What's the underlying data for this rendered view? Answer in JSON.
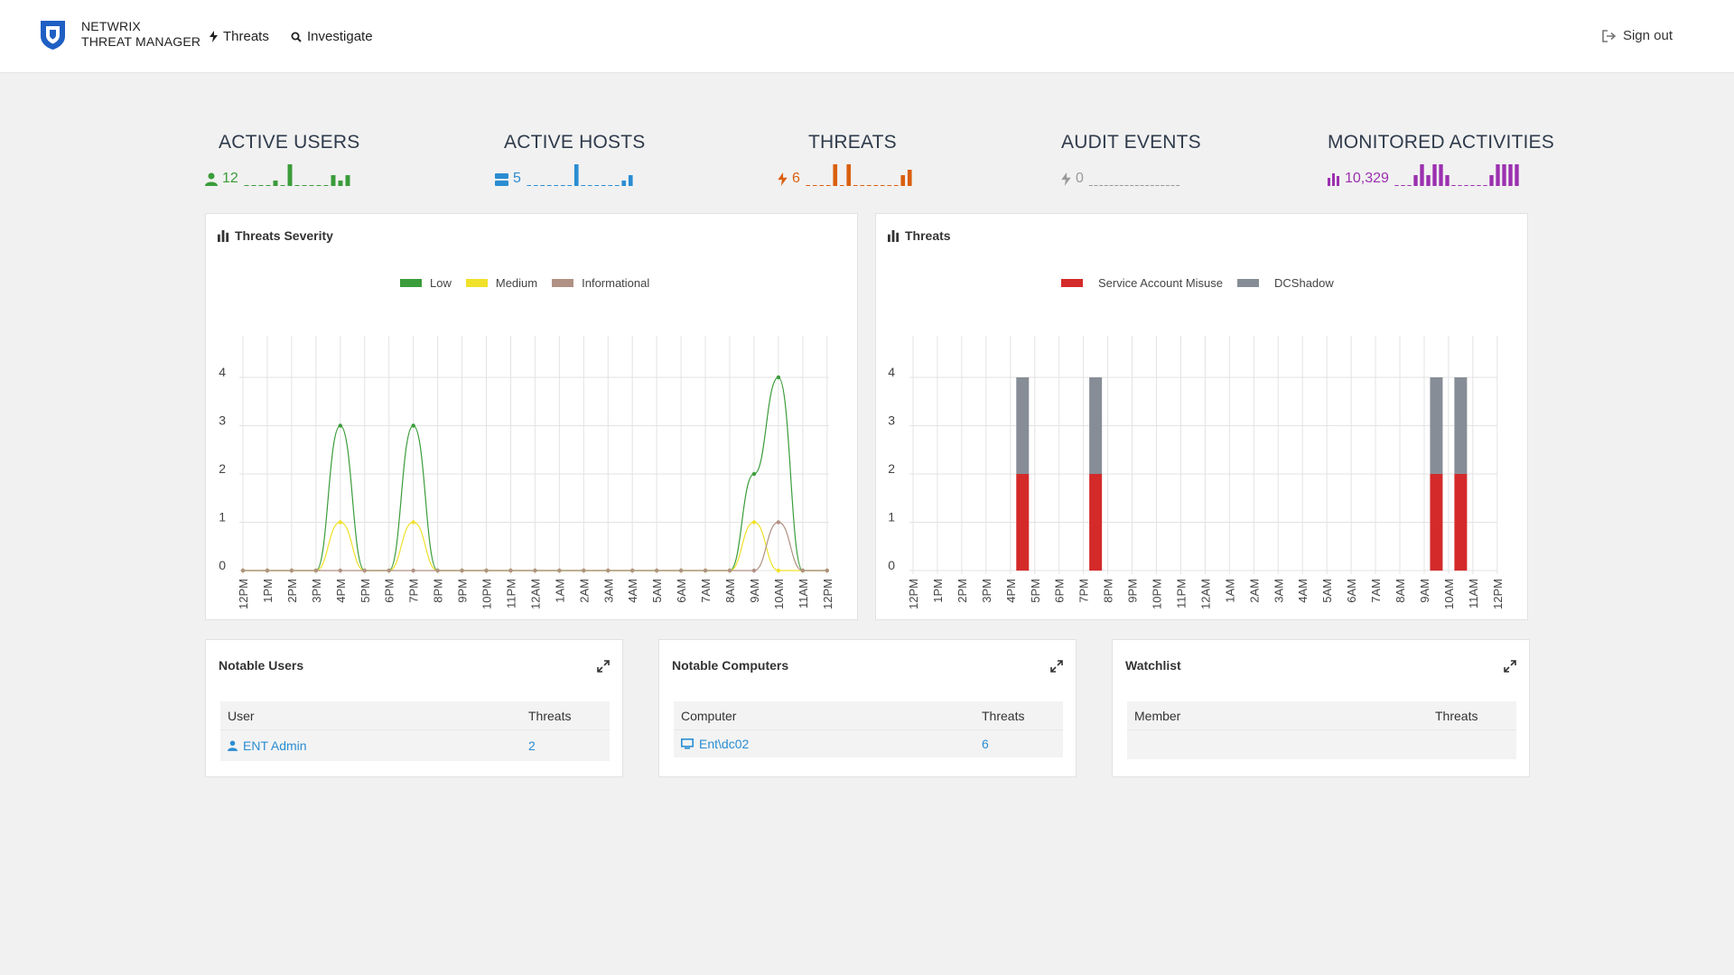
{
  "header": {
    "brand_line1": "NETWRIX",
    "brand_line2": "THREAT MANAGER",
    "nav_threats": "Threats",
    "nav_investigate": "Investigate",
    "sign_out": "Sign out"
  },
  "stats": {
    "active_users": {
      "title": "ACTIVE USERS",
      "value": "12",
      "color": "#3a9c3a",
      "spark": [
        0,
        0,
        0,
        0,
        1,
        0,
        4,
        0,
        0,
        0,
        0,
        0,
        2,
        1,
        2
      ]
    },
    "active_hosts": {
      "title": "ACTIVE HOSTS",
      "value": "5",
      "color": "#2a8dd2",
      "spark": [
        0,
        0,
        0,
        0,
        0,
        0,
        0,
        4,
        0,
        0,
        0,
        0,
        0,
        0,
        1,
        2
      ]
    },
    "threats": {
      "title": "THREATS",
      "value": "6",
      "color": "#d95f0e",
      "spark": [
        0,
        0,
        0,
        0,
        4,
        0,
        4,
        0,
        0,
        0,
        0,
        0,
        0,
        0,
        2,
        3
      ]
    },
    "audit_events": {
      "title": "AUDIT EVENTS",
      "value": "0",
      "color": "#999999",
      "spark": [
        0,
        0,
        0,
        0,
        0,
        0,
        0,
        0,
        0,
        0,
        0,
        0,
        0,
        0,
        0,
        0,
        0,
        0
      ]
    },
    "monitored_activities": {
      "title": "MONITORED ACTIVITIES",
      "value": "10,329",
      "color": "#9b30b0",
      "spark": [
        0,
        0,
        0,
        1,
        2,
        1,
        2,
        2,
        1,
        0,
        0,
        0,
        0,
        0,
        0,
        1,
        2,
        2,
        2,
        2
      ]
    }
  },
  "severity_panel": {
    "title": "Threats Severity",
    "legend": {
      "low": "Low",
      "medium": "Medium",
      "informational": "Informational"
    }
  },
  "threats_panel": {
    "title": "Threats",
    "legend": {
      "sam": "Service Account Misuse",
      "dcshadow": "DCShadow"
    }
  },
  "chart_data": [
    {
      "type": "line",
      "title": "Threats Severity",
      "x": [
        "12PM",
        "1PM",
        "2PM",
        "3PM",
        "4PM",
        "5PM",
        "6PM",
        "7PM",
        "8PM",
        "9PM",
        "10PM",
        "11PM",
        "12AM",
        "1AM",
        "2AM",
        "3AM",
        "4AM",
        "5AM",
        "6AM",
        "7AM",
        "8AM",
        "9AM",
        "10AM",
        "11AM",
        "12PM"
      ],
      "yticks": [
        0,
        1,
        2,
        3,
        4
      ],
      "ylim": [
        0,
        4
      ],
      "series": [
        {
          "name": "Low",
          "color": "#3a9c3a",
          "values": [
            0,
            0,
            0,
            0,
            3,
            0,
            0,
            3,
            0,
            0,
            0,
            0,
            0,
            0,
            0,
            0,
            0,
            0,
            0,
            0,
            0,
            2,
            4,
            0,
            0
          ]
        },
        {
          "name": "Medium",
          "color": "#f0e12a",
          "values": [
            0,
            0,
            0,
            0,
            1,
            0,
            0,
            1,
            0,
            0,
            0,
            0,
            0,
            0,
            0,
            0,
            0,
            0,
            0,
            0,
            0,
            1,
            0,
            0,
            0
          ]
        },
        {
          "name": "Informational",
          "color": "#b09184",
          "values": [
            0,
            0,
            0,
            0,
            0,
            0,
            0,
            0,
            0,
            0,
            0,
            0,
            0,
            0,
            0,
            0,
            0,
            0,
            0,
            0,
            0,
            0,
            1,
            0,
            0
          ]
        }
      ],
      "legend": "top-center",
      "grid": true
    },
    {
      "type": "bar",
      "title": "Threats",
      "categories": [
        "12PM",
        "1PM",
        "2PM",
        "3PM",
        "4PM",
        "5PM",
        "6PM",
        "7PM",
        "8PM",
        "9PM",
        "10PM",
        "11PM",
        "12AM",
        "1AM",
        "2AM",
        "3AM",
        "4AM",
        "5AM",
        "6AM",
        "7AM",
        "8AM",
        "9AM",
        "10AM",
        "11AM",
        "12PM"
      ],
      "yticks": [
        0,
        1,
        2,
        3,
        4
      ],
      "ylim": [
        0,
        4
      ],
      "stacked": true,
      "series": [
        {
          "name": "Service Account Misuse",
          "color": "#d42a2a",
          "values": [
            0,
            0,
            0,
            0,
            0,
            2,
            0,
            0,
            2,
            0,
            0,
            0,
            0,
            0,
            0,
            0,
            0,
            0,
            0,
            0,
            0,
            0,
            2,
            2,
            0
          ]
        },
        {
          "name": "DCShadow",
          "color": "#878d96",
          "values": [
            0,
            0,
            0,
            0,
            0,
            2,
            0,
            0,
            2,
            0,
            0,
            0,
            0,
            0,
            0,
            0,
            0,
            0,
            0,
            0,
            0,
            0,
            2,
            2,
            0
          ]
        }
      ],
      "legend": "top-center",
      "grid": true
    }
  ],
  "notable_users": {
    "title": "Notable Users",
    "col_user": "User",
    "col_threats": "Threats",
    "rows": [
      {
        "name": "ENT Admin",
        "threats": "2"
      }
    ]
  },
  "notable_computers": {
    "title": "Notable Computers",
    "col_computer": "Computer",
    "col_threats": "Threats",
    "rows": [
      {
        "name": "Ent\\dc02",
        "threats": "6"
      }
    ]
  },
  "watchlist": {
    "title": "Watchlist",
    "col_member": "Member",
    "col_threats": "Threats"
  }
}
